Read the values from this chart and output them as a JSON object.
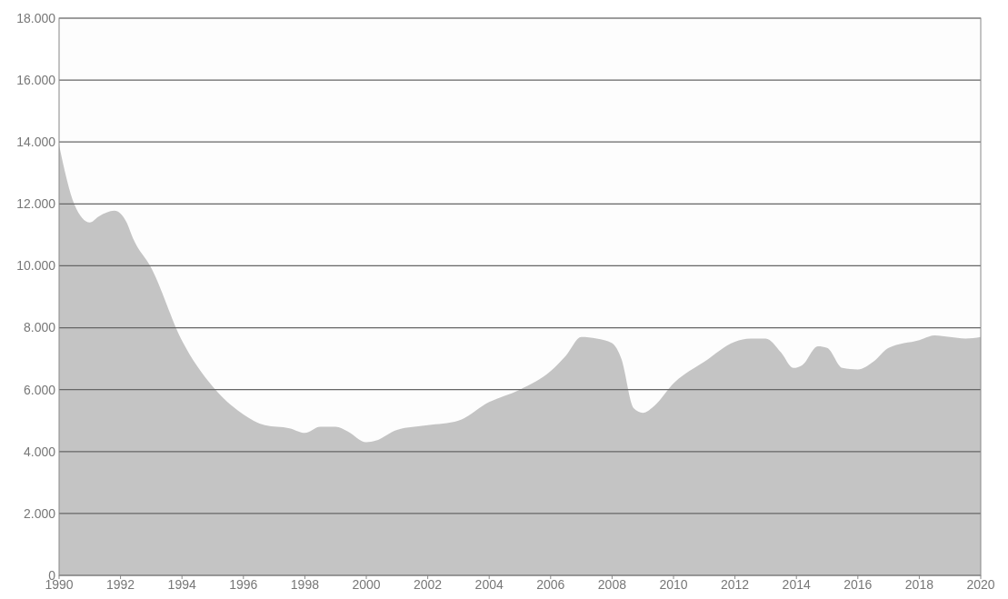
{
  "chart_data": {
    "type": "area",
    "x": [
      1990,
      1990.5,
      1991,
      1991.3,
      1991.8,
      1992.2,
      1992.4,
      1993,
      1994,
      1995,
      1996,
      1996.7,
      1997.5,
      1998,
      1998.5,
      1999,
      1999.4,
      2000,
      2000.3,
      2001,
      2002,
      2003,
      2004,
      2005,
      2006,
      2006.5,
      2007,
      2007.5,
      2008,
      2008.3,
      2008.7,
      2009,
      2009.4,
      2010,
      2011,
      2012,
      2012.5,
      2013,
      2013.5,
      2013.9,
      2014.2,
      2014.7,
      2015,
      2015.5,
      2016,
      2016.5,
      2017,
      2018,
      2018.5,
      2019,
      2019.5,
      2020
    ],
    "series": [
      {
        "color": "#c4c4c4",
        "values": [
          13900,
          11980,
          11400,
          11600,
          11780,
          11400,
          10900,
          9930,
          7580,
          6100,
          5200,
          4850,
          4750,
          4600,
          4800,
          4800,
          4650,
          4300,
          4350,
          4700,
          4850,
          5000,
          5600,
          6000,
          6600,
          7100,
          7700,
          7650,
          7500,
          7000,
          5400,
          5250,
          5500,
          6200,
          6900,
          7550,
          7650,
          7650,
          7200,
          6700,
          6800,
          7400,
          7350,
          6700,
          6650,
          6900,
          7350,
          7600,
          7750,
          7700,
          7650,
          7700
        ]
      }
    ],
    "xlim": [
      1990,
      2020
    ],
    "xticks": [
      1990,
      1992,
      1994,
      1996,
      1998,
      2000,
      2002,
      2004,
      2006,
      2008,
      2010,
      2012,
      2014,
      2016,
      2018,
      2020
    ],
    "ylim": [
      0,
      18000
    ],
    "yticks": [
      0,
      {
        "value": 2000,
        "label": "2.000"
      },
      {
        "value": 4000,
        "label": "4.000"
      },
      {
        "value": 6000,
        "label": "6.000"
      },
      {
        "value": 8000,
        "label": "8.000"
      },
      {
        "value": 10000,
        "label": "10.000"
      },
      {
        "value": 12000,
        "label": "12.000"
      },
      {
        "value": 14000,
        "label": "14.000"
      },
      {
        "value": 16000,
        "label": "16.000"
      },
      {
        "value": 18000,
        "label": "18.000"
      }
    ],
    "grid": "y"
  }
}
